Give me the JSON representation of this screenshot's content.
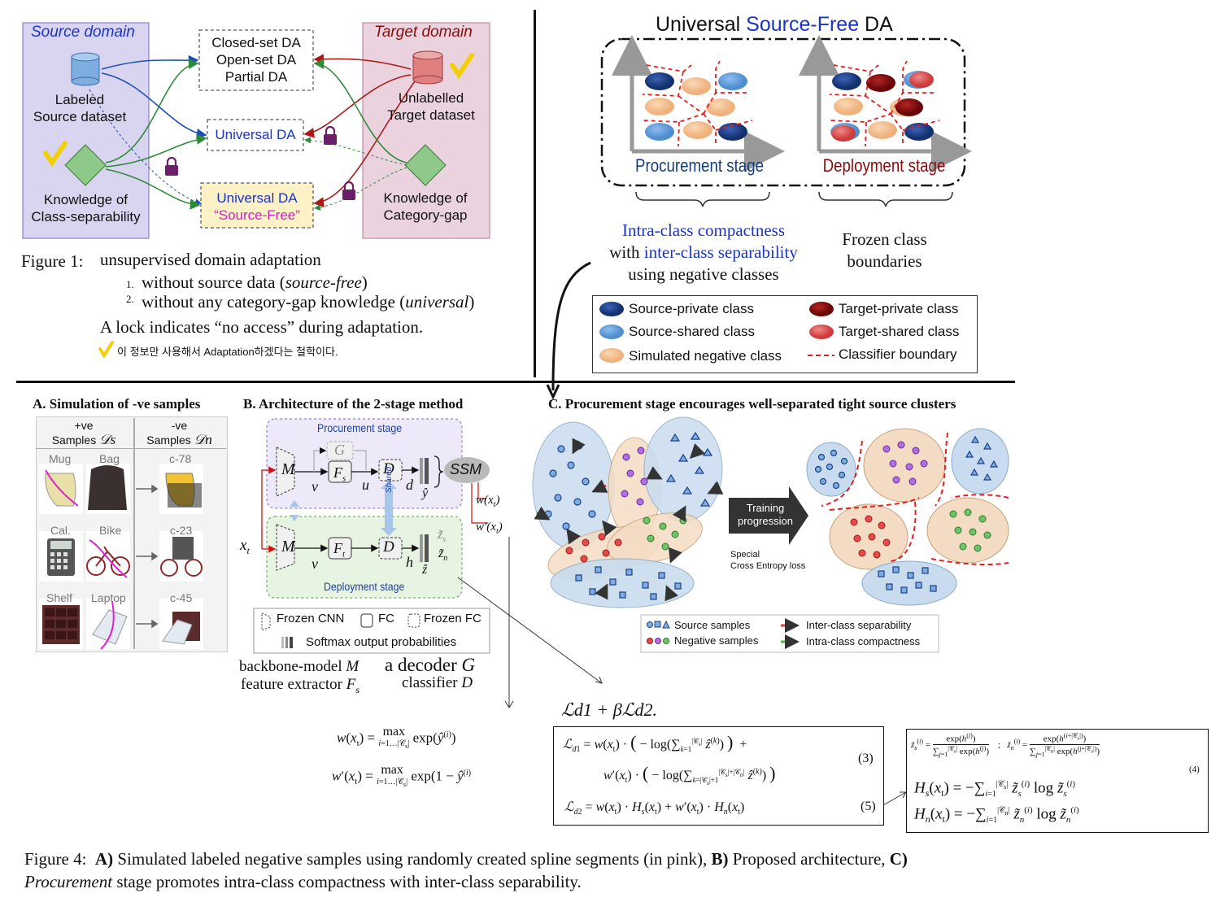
{
  "fig1": {
    "source_domain": "Source domain",
    "target_domain": "Target domain",
    "labeled_source_1": "Labeled",
    "labeled_source_2": "Source dataset",
    "knowledge_cs_1": "Knowledge of",
    "knowledge_cs_2": "Class-separability",
    "closed_set": "Closed-set DA",
    "open_set": "Open-set DA",
    "partial": "Partial DA",
    "universal": "Universal DA",
    "universal_sf_1": "Universal DA",
    "universal_sf_2": "“Source-Free”",
    "unlabelled_1": "Unlabelled",
    "unlabelled_2": "Target dataset",
    "knowledge_cg_1": "Knowledge of",
    "knowledge_cg_2": "Category-gap",
    "caption_label": "Figure 1:",
    "caption_main": "unsupervised domain adaptation",
    "caption_item1_num": "1.",
    "caption_item1": "without source data (",
    "caption_item1_it": "source-free",
    "caption_item1_end": ")",
    "caption_item2_num": "2.",
    "caption_item2": "without any category-gap knowledge (",
    "caption_item2_it": "universal",
    "caption_item2_end": ")",
    "caption_lock": "A lock indicates “no access” during adaptation.",
    "caption_korean": "이 정보만 사용해서 Adaptation하겠다는 철학이다."
  },
  "usfda": {
    "title_a": "Universal ",
    "title_b": "Source-Free",
    "title_c": " DA",
    "procurement": "Procurement stage",
    "deployment": "Deployment stage",
    "intra_a": "Intra-class compactness",
    "intra_b": "with ",
    "intra_c": "inter-class separability",
    "intra_d": "using negative classes",
    "frozen_1": "Frozen class",
    "frozen_2": "boundaries",
    "legend": {
      "source_private": "Source-private class",
      "source_shared": "Source-shared class",
      "simulated_negative": "Simulated negative class",
      "target_private": "Target-private class",
      "target_shared": "Target-shared class",
      "classifier_boundary": "Classifier boundary"
    }
  },
  "panelA": {
    "title": "A. Simulation of -ve samples",
    "pos_header_1": "+ve",
    "pos_header_2": "Samples",
    "pos_symbol": "𝒟s",
    "neg_header_1": "-ve",
    "neg_header_2": "Samples",
    "neg_symbol": "𝒟n",
    "rows": [
      {
        "a": "Mug",
        "b": "Bag",
        "c": "c-78"
      },
      {
        "a": "Cal.",
        "b": "Bike",
        "c": "c-23"
      },
      {
        "a": "Shelf",
        "b": "Laptop",
        "c": "c-45"
      }
    ]
  },
  "panelB": {
    "title": "B. Architecture of the 2-stage method",
    "procurement": "Procurement stage",
    "deployment": "Deployment stage",
    "ssm": "SSM",
    "shared": "Shared",
    "M": "M",
    "G": "G",
    "Fs": "F",
    "Fs_sub": "s",
    "Ft": "F",
    "Ft_sub": "t",
    "D": "D",
    "v": "v",
    "u": "u",
    "d": "d",
    "h": "h",
    "yhat": "ŷ",
    "zhat": "ẑ",
    "zs": "z̃",
    "zs_sub": "s",
    "zn": "z̃",
    "zn_sub": "n",
    "xt": "x",
    "xt_sub": "t",
    "w": "w(x",
    "w_end": ")",
    "wp": "w′(x",
    "wp_end": ")",
    "legend_frozen_cnn": "Frozen CNN",
    "legend_fc": "FC",
    "legend_frozen_fc": "Frozen FC",
    "legend_softmax": "Softmax output probabilities",
    "def_backbone": "backbone-model ",
    "def_backbone_sym": "M",
    "def_feature": "feature extractor ",
    "def_feature_sym": "F",
    "def_feature_sub": "s",
    "def_decoder": "a decoder ",
    "def_decoder_sym": "G",
    "def_classifier": "classifier ",
    "def_classifier_sym": "D"
  },
  "panelC": {
    "title": "C. Procurement stage encourages well-separated tight source clusters",
    "training_1": "Training",
    "training_2": "progression",
    "special_1": "Special",
    "special_2": "Cross Entropy loss",
    "legend_source": "Source samples",
    "legend_negative": "Negative samples",
    "legend_inter": "Inter-class separability",
    "legend_intra": "Intra-class compactness"
  },
  "equations": {
    "loss_total": "ℒd1 + βℒd2.",
    "w_eq": "w(x_t) = max_{i=1…|C_s|} exp(ŷ^(i))",
    "wp_eq": "w′(x_t) = max_{i=1…|C_s|} exp(1 − ŷ^(i))",
    "eq3_num": "(3)",
    "eq5_num": "(5)",
    "eq4_num": "(4)"
  },
  "fig4": {
    "label": "Figure 4:",
    "a_bold": "A)",
    "a_text": " Simulated labeled negative samples using randomly created spline segments (in pink), ",
    "b_bold": "B)",
    "b_text": " Proposed architecture, ",
    "c_bold": "C)",
    "line2_it": "Procurement",
    "line2": " stage promotes intra-class compactness with inter-class separability."
  },
  "colors": {
    "source_private": "#1c3f8a",
    "source_shared": "#5b9bd5",
    "negative": "#f4c195",
    "target_private": "#8b0c0c",
    "target_shared": "#e05a5a",
    "source_panel": "#d9d4ef",
    "target_panel": "#ead3de",
    "blue_text": "#1a33c9",
    "magenta_text": "#d11fc9"
  }
}
